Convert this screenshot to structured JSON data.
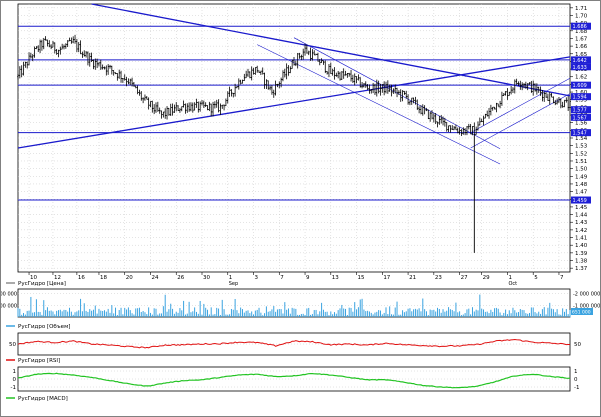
{
  "chart_data": [
    {
      "type": "candlestick",
      "title": "",
      "legend_label": "РусГидро [Цена]",
      "y_ticks": [
        1.71,
        1.7,
        1.69,
        1.68,
        1.67,
        1.66,
        1.65,
        1.64,
        1.63,
        1.62,
        1.61,
        1.6,
        1.59,
        1.58,
        1.57,
        1.56,
        1.55,
        1.54,
        1.53,
        1.52,
        1.51,
        1.5,
        1.49,
        1.48,
        1.47,
        1.46,
        1.45,
        1.44,
        1.43,
        1.42,
        1.41,
        1.4,
        1.39,
        1.38,
        1.37
      ],
      "ylim": [
        1.365,
        1.715
      ],
      "x_ticks": [
        {
          "x": 6,
          "label": "10"
        },
        {
          "x": 19,
          "label": "12"
        },
        {
          "x": 32,
          "label": "16"
        },
        {
          "x": 44,
          "label": "18"
        },
        {
          "x": 58,
          "label": "20"
        },
        {
          "x": 72,
          "label": "24"
        },
        {
          "x": 86,
          "label": "26"
        },
        {
          "x": 100,
          "label": "30"
        },
        {
          "x": 114,
          "label": "1"
        },
        {
          "x": 128,
          "label": "3"
        },
        {
          "x": 142,
          "label": "7"
        },
        {
          "x": 156,
          "label": "9"
        },
        {
          "x": 170,
          "label": "13"
        },
        {
          "x": 184,
          "label": "15"
        },
        {
          "x": 198,
          "label": "17"
        },
        {
          "x": 212,
          "label": "21"
        },
        {
          "x": 226,
          "label": "23"
        },
        {
          "x": 240,
          "label": "27"
        },
        {
          "x": 252,
          "label": "29"
        },
        {
          "x": 266,
          "label": "1"
        },
        {
          "x": 280,
          "label": "5"
        },
        {
          "x": 294,
          "label": "7"
        }
      ],
      "month_labels": [
        {
          "x": 114,
          "label": "Sep"
        },
        {
          "x": 266,
          "label": "Oct"
        }
      ],
      "x_range": [
        0,
        300
      ],
      "level_markers": [
        {
          "y": 1.686,
          "label": "1.686"
        },
        {
          "y": 1.642,
          "label": "1.642"
        },
        {
          "y": 1.633,
          "label": "1.633"
        },
        {
          "y": 1.609,
          "label": "1.609"
        },
        {
          "y": 1.594,
          "label": "1.594"
        },
        {
          "y": 1.577,
          "label": "1.577"
        },
        {
          "y": 1.567,
          "label": "1.567"
        },
        {
          "y": 1.547,
          "label": "1.547"
        },
        {
          "y": 1.459,
          "label": "1.459"
        }
      ],
      "horizontal_lines": [
        1.686,
        1.642,
        1.609,
        1.547,
        1.459
      ],
      "trend_lines": [
        {
          "x1": 40,
          "y1": 1.715,
          "x2": 300,
          "y2": 1.595,
          "weight": "thick"
        },
        {
          "x1": 0,
          "y1": 1.527,
          "x2": 300,
          "y2": 1.646,
          "weight": "thick"
        },
        {
          "x1": 150,
          "y1": 1.671,
          "x2": 262,
          "y2": 1.526,
          "weight": "thin"
        },
        {
          "x1": 130,
          "y1": 1.662,
          "x2": 262,
          "y2": 1.506,
          "weight": "thin"
        },
        {
          "x1": 246,
          "y1": 1.547,
          "x2": 300,
          "y2": 1.618,
          "weight": "thin"
        },
        {
          "x1": 246,
          "y1": 1.527,
          "x2": 300,
          "y2": 1.598,
          "weight": "thin"
        }
      ],
      "anchors": [
        [
          0,
          1.62
        ],
        [
          8,
          1.65
        ],
        [
          14,
          1.665
        ],
        [
          22,
          1.655
        ],
        [
          30,
          1.665
        ],
        [
          40,
          1.64
        ],
        [
          50,
          1.63
        ],
        [
          60,
          1.615
        ],
        [
          68,
          1.59
        ],
        [
          78,
          1.57
        ],
        [
          90,
          1.582
        ],
        [
          100,
          1.58
        ],
        [
          110,
          1.58
        ],
        [
          122,
          1.62
        ],
        [
          130,
          1.63
        ],
        [
          138,
          1.6
        ],
        [
          150,
          1.64
        ],
        [
          156,
          1.655
        ],
        [
          164,
          1.64
        ],
        [
          170,
          1.625
        ],
        [
          180,
          1.62
        ],
        [
          190,
          1.605
        ],
        [
          200,
          1.605
        ],
        [
          210,
          1.595
        ],
        [
          220,
          1.575
        ],
        [
          230,
          1.56
        ],
        [
          240,
          1.55
        ],
        [
          248,
          1.55
        ],
        [
          258,
          1.58
        ],
        [
          266,
          1.6
        ],
        [
          272,
          1.615
        ],
        [
          280,
          1.605
        ],
        [
          290,
          1.592
        ],
        [
          300,
          1.582
        ]
      ],
      "spikes": [
        {
          "x": 248,
          "low": 1.39
        }
      ]
    },
    {
      "type": "bar",
      "title": "",
      "legend_label": "РусГидро [Объем]",
      "y_ticks": [
        {
          "value": 2000000,
          "label": "2 000 000"
        },
        {
          "value": 1000000,
          "label": "1 000 000"
        }
      ],
      "ylim": [
        0,
        2400000
      ],
      "marker_label": "651 000"
    },
    {
      "type": "line",
      "title": "",
      "legend_label": "РусГидро [RSI]",
      "y_ticks": [
        {
          "value": 50,
          "label": "50"
        }
      ],
      "ylim": [
        20,
        80
      ],
      "series_color": "#e01010",
      "anchors": [
        [
          0,
          50
        ],
        [
          10,
          57
        ],
        [
          20,
          54
        ],
        [
          30,
          58
        ],
        [
          40,
          50
        ],
        [
          50,
          47
        ],
        [
          60,
          43
        ],
        [
          70,
          40
        ],
        [
          80,
          47
        ],
        [
          90,
          48
        ],
        [
          100,
          50
        ],
        [
          110,
          51
        ],
        [
          120,
          55
        ],
        [
          130,
          54
        ],
        [
          140,
          45
        ],
        [
          150,
          58
        ],
        [
          160,
          56
        ],
        [
          170,
          48
        ],
        [
          180,
          50
        ],
        [
          190,
          47
        ],
        [
          200,
          52
        ],
        [
          210,
          48
        ],
        [
          220,
          46
        ],
        [
          230,
          44
        ],
        [
          240,
          45
        ],
        [
          250,
          49
        ],
        [
          260,
          58
        ],
        [
          270,
          62
        ],
        [
          280,
          55
        ],
        [
          290,
          52
        ],
        [
          300,
          49
        ]
      ]
    },
    {
      "type": "line",
      "title": "",
      "legend_label": "РусГидро [MACD]",
      "y_ticks": [
        {
          "value": 1,
          "label": "1"
        },
        {
          "value": 0,
          "label": "0"
        },
        {
          "value": -1,
          "label": "-1"
        }
      ],
      "ylim": [
        -1.5,
        1.5
      ],
      "series_color": "#22c322",
      "anchors": [
        [
          0,
          0.1
        ],
        [
          10,
          0.6
        ],
        [
          20,
          0.7
        ],
        [
          30,
          0.5
        ],
        [
          40,
          0.2
        ],
        [
          50,
          -0.2
        ],
        [
          60,
          -0.6
        ],
        [
          70,
          -0.9
        ],
        [
          80,
          -0.5
        ],
        [
          90,
          -0.2
        ],
        [
          100,
          -0.1
        ],
        [
          110,
          0.2
        ],
        [
          120,
          0.5
        ],
        [
          130,
          0.6
        ],
        [
          140,
          0.3
        ],
        [
          150,
          0.4
        ],
        [
          160,
          0.7
        ],
        [
          170,
          0.5
        ],
        [
          180,
          0.2
        ],
        [
          190,
          -0.1
        ],
        [
          200,
          -0.1
        ],
        [
          210,
          -0.4
        ],
        [
          220,
          -0.8
        ],
        [
          230,
          -1.0
        ],
        [
          240,
          -1.1
        ],
        [
          250,
          -0.9
        ],
        [
          260,
          -0.3
        ],
        [
          270,
          0.4
        ],
        [
          280,
          0.6
        ],
        [
          290,
          0.3
        ],
        [
          300,
          0.1
        ]
      ]
    }
  ]
}
